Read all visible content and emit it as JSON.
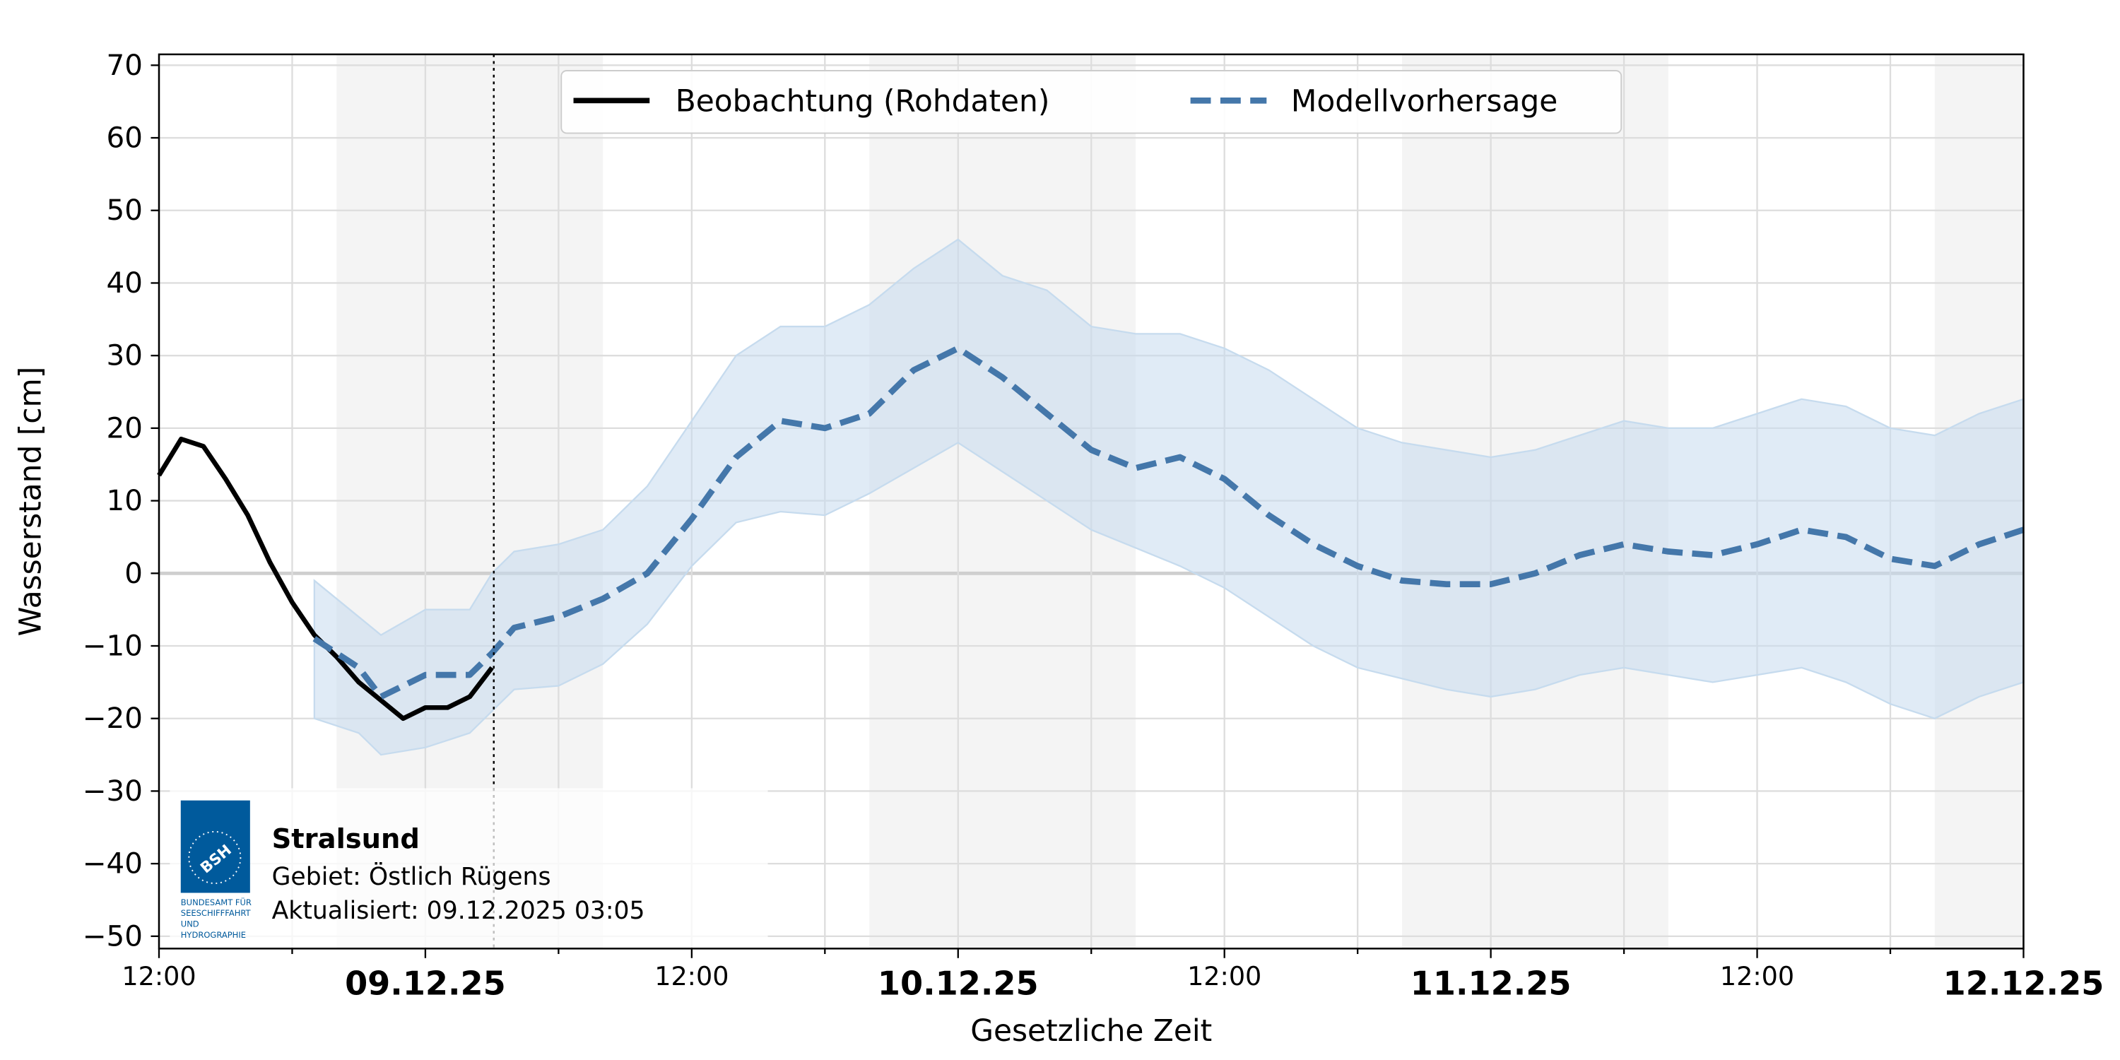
{
  "chart_data": {
    "type": "line",
    "xlabel": "Gesetzliche Zeit",
    "ylabel": "Wasserstand [cm]",
    "xlim": [
      "2025-12-08T12:00",
      "2025-12-12T00:00"
    ],
    "xticks": [
      {
        "value": "2025-12-08T12:00",
        "label": "12:00"
      },
      {
        "value": "2025-12-08T18:00",
        "label": null
      },
      {
        "value": "2025-12-09T00:00",
        "label": "09.12.25"
      },
      {
        "value": "2025-12-09T06:00",
        "label": null
      },
      {
        "value": "2025-12-09T12:00",
        "label": "12:00"
      },
      {
        "value": "2025-12-09T18:00",
        "label": null
      },
      {
        "value": "2025-12-10T00:00",
        "label": "10.12.25"
      },
      {
        "value": "2025-12-10T06:00",
        "label": null
      },
      {
        "value": "2025-12-10T12:00",
        "label": "12:00"
      },
      {
        "value": "2025-12-10T18:00",
        "label": null
      },
      {
        "value": "2025-12-11T00:00",
        "label": "11.12.25"
      },
      {
        "value": "2025-12-11T06:00",
        "label": null
      },
      {
        "value": "2025-12-11T12:00",
        "label": "12:00"
      },
      {
        "value": "2025-12-11T18:00",
        "label": null
      },
      {
        "value": "2025-12-12T00:00",
        "label": "12.12.25"
      }
    ],
    "ylim": [
      -51.7,
      71.5
    ],
    "yticks": [
      {
        "value": -50,
        "label": "−50"
      },
      {
        "value": -40,
        "label": "−40"
      },
      {
        "value": -30,
        "label": "−30"
      },
      {
        "value": -20,
        "label": "−20"
      },
      {
        "value": -10,
        "label": "−10"
      },
      0,
      10,
      20,
      30,
      40,
      50,
      60,
      70
    ],
    "grid": true,
    "legend": "top-center",
    "shading": [
      [
        "2025-12-08T20:00",
        "2025-12-09T08:00"
      ],
      [
        "2025-12-09T20:00",
        "2025-12-10T08:00"
      ],
      [
        "2025-12-10T20:00",
        "2025-12-11T08:00"
      ],
      [
        "2025-12-11T20:00",
        "2025-12-12T00:00"
      ]
    ],
    "now": "2025-12-09T03:05",
    "series": [
      {
        "name": "Beobachtung (Rohdaten)",
        "color": "#000000",
        "style": "solid",
        "x": [
          "2025-12-08T12:00",
          "2025-12-08T13:00",
          "2025-12-08T14:00",
          "2025-12-08T15:00",
          "2025-12-08T16:00",
          "2025-12-08T17:00",
          "2025-12-08T18:00",
          "2025-12-08T19:00",
          "2025-12-08T20:00",
          "2025-12-08T21:00",
          "2025-12-08T22:00",
          "2025-12-08T23:00",
          "2025-12-09T00:00",
          "2025-12-09T01:00",
          "2025-12-09T02:00",
          "2025-12-09T03:00"
        ],
        "values": [
          13.5,
          18.5,
          17.5,
          13,
          8,
          1.5,
          -4,
          -8.5,
          -11.5,
          -15,
          -17.5,
          -20,
          -18.5,
          -18.5,
          -17,
          -13
        ]
      },
      {
        "name": "Modellvorhersage",
        "color": "#4477aa",
        "style": "dashed",
        "x": [
          "2025-12-08T19:00",
          "2025-12-08T21:00",
          "2025-12-08T22:00",
          "2025-12-09T00:00",
          "2025-12-09T02:00",
          "2025-12-09T03:00",
          "2025-12-09T04:00",
          "2025-12-09T06:00",
          "2025-12-09T08:00",
          "2025-12-09T10:00",
          "2025-12-09T12:00",
          "2025-12-09T14:00",
          "2025-12-09T16:00",
          "2025-12-09T18:00",
          "2025-12-09T20:00",
          "2025-12-09T22:00",
          "2025-12-10T00:00",
          "2025-12-10T02:00",
          "2025-12-10T04:00",
          "2025-12-10T06:00",
          "2025-12-10T08:00",
          "2025-12-10T10:00",
          "2025-12-10T12:00",
          "2025-12-10T14:00",
          "2025-12-10T16:00",
          "2025-12-10T18:00",
          "2025-12-10T20:00",
          "2025-12-10T22:00",
          "2025-12-11T00:00",
          "2025-12-11T02:00",
          "2025-12-11T04:00",
          "2025-12-11T06:00",
          "2025-12-11T08:00",
          "2025-12-11T10:00",
          "2025-12-11T12:00",
          "2025-12-11T14:00",
          "2025-12-11T16:00",
          "2025-12-11T18:00",
          "2025-12-11T20:00",
          "2025-12-11T22:00",
          "2025-12-12T00:00"
        ],
        "values": [
          -9,
          -13,
          -17,
          -14,
          -14,
          -11,
          -7.5,
          -6,
          -3.5,
          0,
          7.5,
          16,
          21,
          20,
          22,
          28,
          31,
          27,
          22,
          17,
          14.5,
          16,
          13,
          8,
          4,
          1,
          -1,
          -1.5,
          -1.5,
          0,
          2.5,
          4,
          3,
          2.5,
          4,
          6,
          5,
          2,
          1,
          4,
          6
        ],
        "lower": [
          -20,
          -22,
          -25,
          -24,
          -22,
          -19,
          -16,
          -15.5,
          -12.5,
          -7,
          1,
          7,
          8.5,
          8,
          11,
          14.5,
          18,
          14,
          10,
          6,
          3.5,
          1,
          -2,
          -6,
          -10,
          -13,
          -14.5,
          -16,
          -17,
          -16,
          -14,
          -13,
          -14,
          -15,
          -14,
          -13,
          -15,
          -18,
          -20,
          -17,
          -15
        ],
        "upper": [
          -1,
          -6,
          -8.5,
          -5,
          -5,
          0,
          3,
          4,
          6,
          12,
          21,
          30,
          34,
          34,
          37,
          42,
          46,
          41,
          39,
          34,
          33,
          33,
          31,
          28,
          24,
          20,
          18,
          17,
          16,
          17,
          19,
          21,
          20,
          20,
          22,
          24,
          23,
          20,
          19,
          22,
          24
        ],
        "band_color": "#c6dbee"
      }
    ]
  },
  "info": {
    "station": "Stralsund",
    "region": "Gebiet: Östlich Rügens",
    "updated": "Aktualisiert: 09.12.2025 03:05",
    "logo": {
      "mark": "BSH",
      "lines": [
        "BUNDESAMT FÜR",
        "SEESCHIFFFAHRT",
        "UND",
        "HYDROGRAPHIE"
      ]
    }
  }
}
